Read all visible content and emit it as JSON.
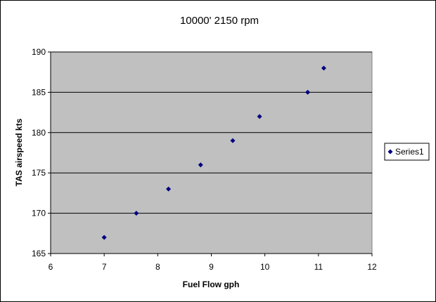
{
  "chart_data": {
    "type": "scatter",
    "title": "10000' 2150 rpm",
    "xlabel": "Fuel Flow gph",
    "ylabel": "TAS airspeed kts",
    "xlim": [
      6,
      12
    ],
    "ylim": [
      165,
      190
    ],
    "xticks": [
      6,
      7,
      8,
      9,
      10,
      11,
      12
    ],
    "yticks": [
      165,
      170,
      175,
      180,
      185,
      190
    ],
    "grid": "horizontal-major",
    "plot_background": "#c0c0c0",
    "legend": {
      "placement": "right",
      "entries": [
        "Series1"
      ]
    },
    "series": [
      {
        "name": "Series1",
        "color": "#000080",
        "marker": "diamond",
        "x": [
          7.0,
          7.6,
          8.2,
          8.8,
          9.4,
          9.9,
          10.8,
          11.1
        ],
        "y": [
          167,
          170,
          173,
          176,
          179,
          182,
          185,
          188
        ]
      }
    ]
  }
}
